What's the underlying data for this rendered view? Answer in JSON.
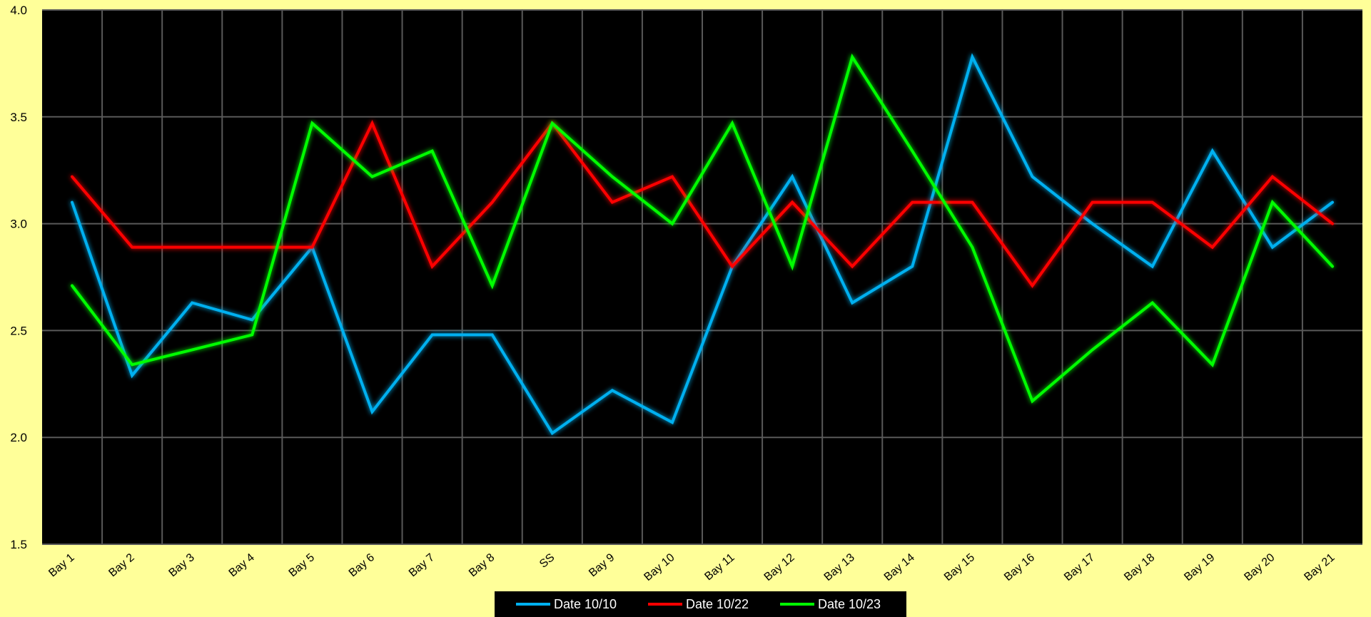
{
  "colors": {
    "page_background": "#ffff99",
    "plot_background": "#000000",
    "gridline": "#595959",
    "legend_background": "#000000",
    "legend_text": "#ffffff"
  },
  "chart_data": {
    "type": "line",
    "title": "",
    "xlabel": "",
    "ylabel": "",
    "ylim": [
      1.5,
      4.0
    ],
    "yticks": [
      "1.5",
      "2.0",
      "2.5",
      "3.0",
      "3.5",
      "4.0"
    ],
    "grid": true,
    "legend_position": "bottom",
    "categories": [
      "Bay 1",
      "Bay 2",
      "Bay 3",
      "Bay 4",
      "Bay 5",
      "Bay 6",
      "Bay 7",
      "Bay 8",
      "SS",
      "Bay 9",
      "Bay 10",
      "Bay 11",
      "Bay 12",
      "Bay 13",
      "Bay 14",
      "Bay 15",
      "Bay 16",
      "Bay 17",
      "Bay 18",
      "Bay 19",
      "Bay 20",
      "Bay 21"
    ],
    "series": [
      {
        "name": "Date 10/10",
        "color": "#00b0f0",
        "values": [
          3.1,
          2.29,
          2.63,
          2.55,
          2.89,
          2.12,
          2.48,
          2.48,
          2.02,
          2.22,
          2.07,
          2.8,
          3.22,
          2.63,
          2.8,
          3.78,
          3.22,
          3.0,
          2.8,
          3.34,
          2.89,
          3.1
        ]
      },
      {
        "name": "Date 10/22",
        "color": "#ff0000",
        "values": [
          3.22,
          2.89,
          2.89,
          2.89,
          2.89,
          3.47,
          2.8,
          3.1,
          3.47,
          3.1,
          3.22,
          2.8,
          3.1,
          2.8,
          3.1,
          3.1,
          2.71,
          3.1,
          3.1,
          2.89,
          3.22,
          3.0
        ]
      },
      {
        "name": "Date 10/23",
        "color": "#00ff00",
        "values": [
          2.71,
          2.34,
          2.41,
          2.48,
          3.47,
          3.22,
          3.34,
          2.71,
          3.47,
          3.22,
          3.0,
          3.47,
          2.8,
          3.78,
          3.34,
          2.89,
          2.17,
          2.41,
          2.63,
          2.34,
          3.1,
          2.8
        ]
      }
    ]
  }
}
